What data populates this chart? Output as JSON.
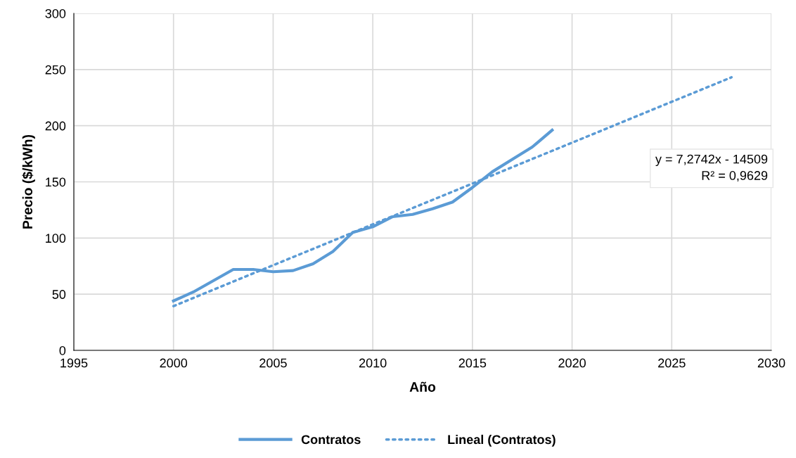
{
  "chart_data": {
    "type": "line",
    "xlabel": "Año",
    "ylabel": "Precio ($/kWh)",
    "xlim": [
      1995,
      2030
    ],
    "xticks": [
      1995,
      2000,
      2005,
      2010,
      2015,
      2020,
      2025,
      2030
    ],
    "ylim": [
      0,
      300
    ],
    "yticks": [
      0,
      50,
      100,
      150,
      200,
      250,
      300
    ],
    "grid": true,
    "legend": "bottom",
    "series": [
      {
        "name": "Contratos",
        "color": "#5b9bd5",
        "line_style": "solid",
        "x": [
          2000,
          2001,
          2002,
          2003,
          2004,
          2005,
          2006,
          2007,
          2008,
          2009,
          2010,
          2011,
          2012,
          2013,
          2014,
          2015,
          2016,
          2017,
          2018,
          2019
        ],
        "values": [
          44,
          52,
          62,
          72,
          72,
          70,
          71,
          77,
          88,
          105,
          110,
          119,
          121,
          126,
          132,
          145,
          159,
          170,
          181,
          196
        ]
      },
      {
        "name": "Lineal (Contratos)",
        "color": "#5b9bd5",
        "line_style": "dotted",
        "x": [
          2000,
          2028
        ],
        "values": [
          39.4,
          243.1
        ]
      }
    ],
    "annotations": [
      "y = 7,2742x - 14509\nR² = 0,9629"
    ]
  }
}
